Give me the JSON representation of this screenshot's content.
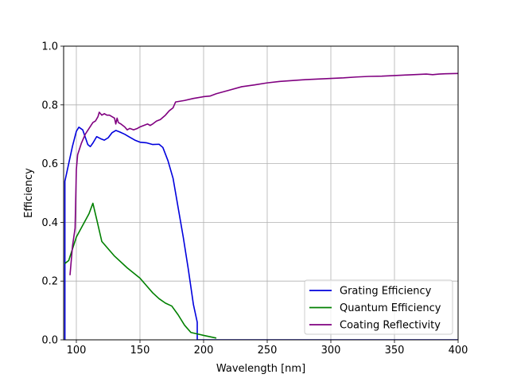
{
  "chart_data": {
    "type": "line",
    "title": "",
    "xlabel": "Wavelength [nm]",
    "ylabel": "Efficiency",
    "xlim": [
      90,
      400
    ],
    "ylim": [
      0,
      1.0
    ],
    "x_ticks": [
      100,
      150,
      200,
      250,
      300,
      350,
      400
    ],
    "x_tick_labels": [
      "100",
      "150",
      "200",
      "250",
      "300",
      "350",
      "400"
    ],
    "y_ticks": [
      0.0,
      0.2,
      0.4,
      0.6,
      0.8,
      1.0
    ],
    "y_tick_labels": [
      "0.0",
      "0.2",
      "0.4",
      "0.6",
      "0.8",
      "1.0"
    ],
    "grid": true,
    "legend_position": "lower-right",
    "series": [
      {
        "name": "Grating Efficiency",
        "color": "#0000dd",
        "points": [
          [
            91,
            0.0
          ],
          [
            91,
            0.54
          ],
          [
            94,
            0.6
          ],
          [
            97,
            0.66
          ],
          [
            100,
            0.71
          ],
          [
            102,
            0.724
          ],
          [
            105,
            0.715
          ],
          [
            107,
            0.69
          ],
          [
            109,
            0.665
          ],
          [
            111,
            0.658
          ],
          [
            113,
            0.67
          ],
          [
            116,
            0.692
          ],
          [
            119,
            0.685
          ],
          [
            122,
            0.68
          ],
          [
            125,
            0.688
          ],
          [
            128,
            0.705
          ],
          [
            131,
            0.713
          ],
          [
            134,
            0.708
          ],
          [
            138,
            0.7
          ],
          [
            142,
            0.69
          ],
          [
            146,
            0.68
          ],
          [
            150,
            0.673
          ],
          [
            155,
            0.671
          ],
          [
            160,
            0.665
          ],
          [
            165,
            0.666
          ],
          [
            168,
            0.655
          ],
          [
            172,
            0.61
          ],
          [
            176,
            0.55
          ],
          [
            180,
            0.45
          ],
          [
            184,
            0.35
          ],
          [
            188,
            0.24
          ],
          [
            192,
            0.12
          ],
          [
            195,
            0.06
          ],
          [
            195,
            0.0
          ],
          [
            400,
            0.0
          ]
        ]
      },
      {
        "name": "Quantum Efficiency",
        "color": "#008000",
        "points": [
          [
            91,
            0.26
          ],
          [
            94,
            0.27
          ],
          [
            97,
            0.31
          ],
          [
            100,
            0.35
          ],
          [
            105,
            0.39
          ],
          [
            110,
            0.43
          ],
          [
            113,
            0.465
          ],
          [
            116,
            0.41
          ],
          [
            120,
            0.335
          ],
          [
            125,
            0.31
          ],
          [
            130,
            0.285
          ],
          [
            140,
            0.245
          ],
          [
            150,
            0.21
          ],
          [
            155,
            0.185
          ],
          [
            160,
            0.16
          ],
          [
            165,
            0.14
          ],
          [
            170,
            0.125
          ],
          [
            175,
            0.115
          ],
          [
            180,
            0.085
          ],
          [
            185,
            0.05
          ],
          [
            190,
            0.025
          ],
          [
            200,
            0.015
          ],
          [
            210,
            0.006
          ]
        ]
      },
      {
        "name": "Coating Reflectivity",
        "color": "#800080",
        "points": [
          [
            95,
            0.22
          ],
          [
            97,
            0.32
          ],
          [
            99,
            0.38
          ],
          [
            100,
            0.58
          ],
          [
            101,
            0.63
          ],
          [
            104,
            0.67
          ],
          [
            107,
            0.7
          ],
          [
            110,
            0.72
          ],
          [
            113,
            0.74
          ],
          [
            115,
            0.745
          ],
          [
            117,
            0.76
          ],
          [
            118,
            0.775
          ],
          [
            120,
            0.765
          ],
          [
            122,
            0.77
          ],
          [
            124,
            0.765
          ],
          [
            126,
            0.765
          ],
          [
            128,
            0.76
          ],
          [
            130,
            0.755
          ],
          [
            131,
            0.735
          ],
          [
            132,
            0.755
          ],
          [
            133,
            0.74
          ],
          [
            135,
            0.735
          ],
          [
            138,
            0.725
          ],
          [
            140,
            0.715
          ],
          [
            142,
            0.72
          ],
          [
            145,
            0.715
          ],
          [
            148,
            0.72
          ],
          [
            150,
            0.725
          ],
          [
            153,
            0.73
          ],
          [
            156,
            0.735
          ],
          [
            158,
            0.73
          ],
          [
            160,
            0.735
          ],
          [
            163,
            0.745
          ],
          [
            166,
            0.75
          ],
          [
            170,
            0.765
          ],
          [
            173,
            0.78
          ],
          [
            176,
            0.79
          ],
          [
            178,
            0.81
          ],
          [
            185,
            0.815
          ],
          [
            192,
            0.822
          ],
          [
            200,
            0.828
          ],
          [
            205,
            0.83
          ],
          [
            210,
            0.838
          ],
          [
            220,
            0.85
          ],
          [
            230,
            0.862
          ],
          [
            240,
            0.868
          ],
          [
            250,
            0.875
          ],
          [
            260,
            0.88
          ],
          [
            270,
            0.883
          ],
          [
            280,
            0.886
          ],
          [
            290,
            0.888
          ],
          [
            300,
            0.89
          ],
          [
            310,
            0.892
          ],
          [
            320,
            0.895
          ],
          [
            330,
            0.897
          ],
          [
            340,
            0.898
          ],
          [
            350,
            0.9
          ],
          [
            360,
            0.902
          ],
          [
            370,
            0.904
          ],
          [
            375,
            0.905
          ],
          [
            380,
            0.903
          ],
          [
            385,
            0.905
          ],
          [
            390,
            0.906
          ],
          [
            400,
            0.907
          ]
        ]
      }
    ]
  }
}
